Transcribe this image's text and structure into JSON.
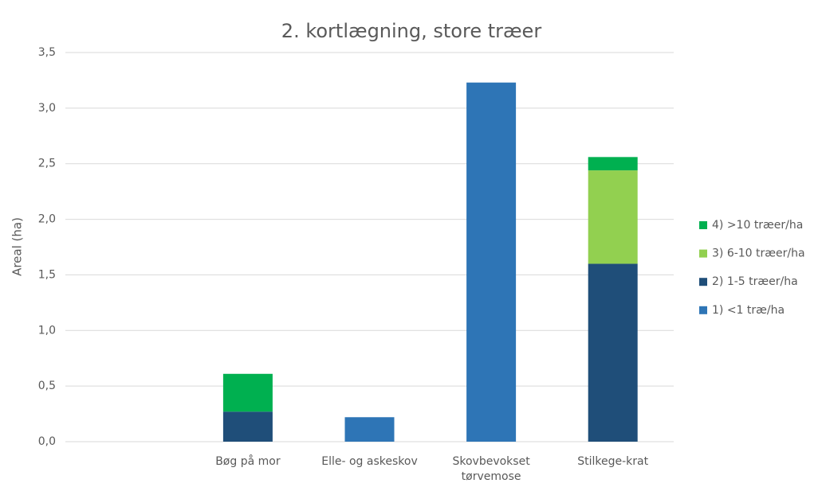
{
  "chart_data": {
    "type": "bar",
    "stacked": true,
    "title": "2. kortlægning, store træer",
    "y_label": "Areal (ha)",
    "categories": [
      null,
      "Bøg på mor",
      "Elle- og askeskov",
      "Skovbevokset tørvemose",
      "Stilkege-krat"
    ],
    "series": [
      {
        "name": "1) <1 træ/ha",
        "color": "#2e75b6",
        "values": [
          null,
          null,
          0.22,
          3.23,
          null
        ]
      },
      {
        "name": "2) 1-5 træer/ha",
        "color": "#1f4e79",
        "values": [
          null,
          0.27,
          null,
          null,
          1.6
        ]
      },
      {
        "name": "3) 6-10 træer/ha",
        "color": "#92d050",
        "values": [
          null,
          null,
          null,
          null,
          0.84
        ]
      },
      {
        "name": "4) >10 træer/ha",
        "color": "#00b050",
        "values": [
          null,
          0.34,
          null,
          null,
          0.12
        ]
      }
    ],
    "ylim": [
      0,
      3.5
    ],
    "yticks": [
      {
        "value": 0,
        "label": "0,0"
      },
      {
        "value": 0.5,
        "label": "0,5"
      },
      {
        "value": 1,
        "label": "1,0"
      },
      {
        "value": 1.5,
        "label": "1,5"
      },
      {
        "value": 2,
        "label": "2,0"
      },
      {
        "value": 2.5,
        "label": "2,5"
      },
      {
        "value": 3,
        "label": "3,0"
      },
      {
        "value": 3.5,
        "label": "3,5"
      }
    ],
    "grid": true,
    "legend": "right"
  }
}
